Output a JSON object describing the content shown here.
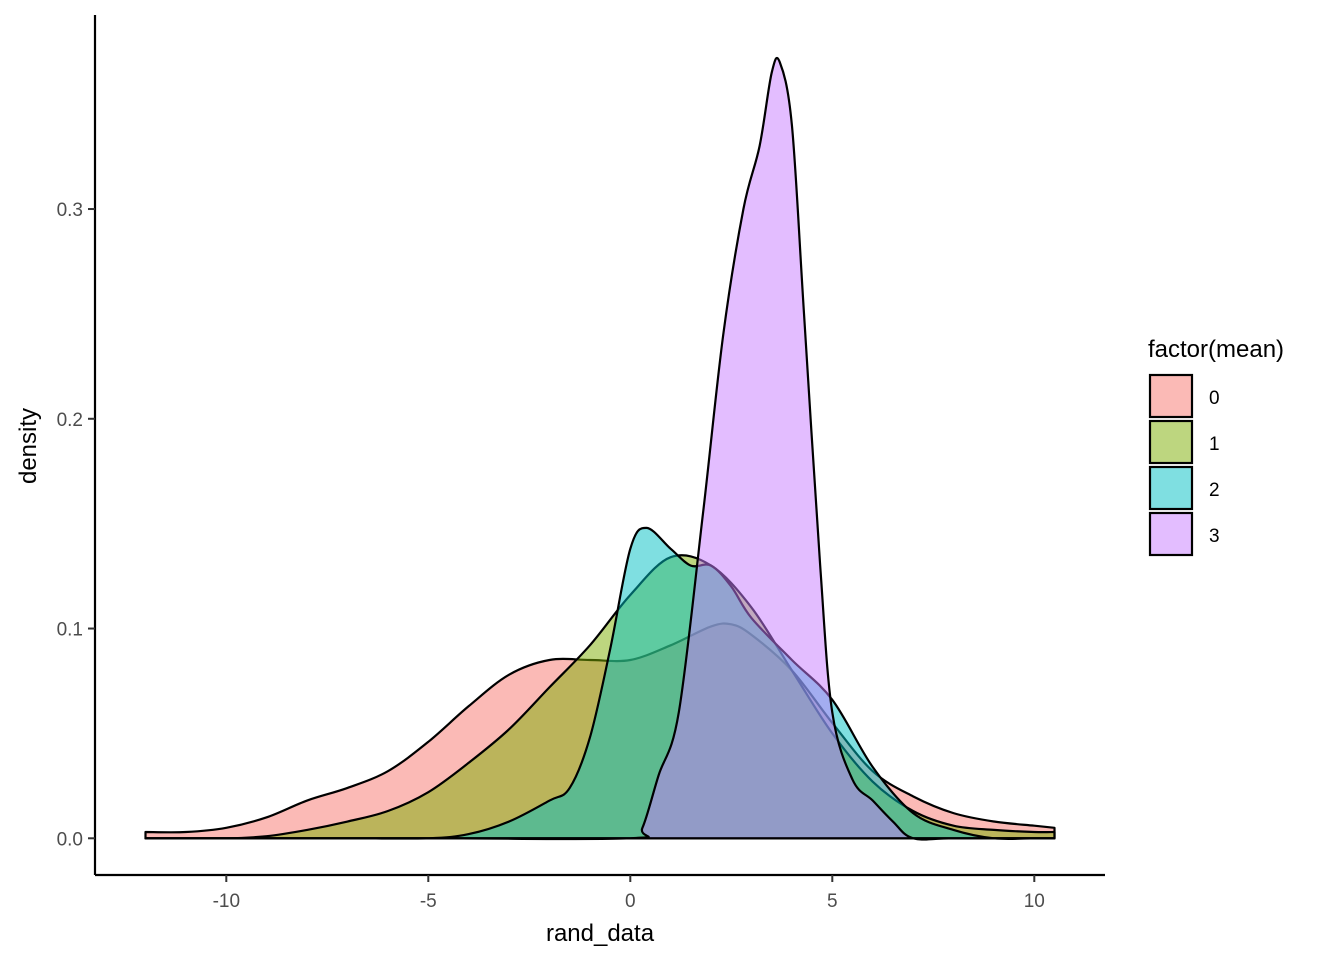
{
  "chart_data": {
    "type": "area",
    "title": "",
    "xlabel": "rand_data",
    "ylabel": "density",
    "xlim": [
      -13.25,
      11.75
    ],
    "ylim": [
      -0.0175,
      0.3925
    ],
    "x_ticks": [
      -10,
      -5,
      0,
      5,
      10
    ],
    "x_tick_labels": [
      "-10",
      "-5",
      "0",
      "5",
      "10"
    ],
    "y_ticks": [
      0.0,
      0.1,
      0.2,
      0.3
    ],
    "y_tick_labels": [
      "0.0",
      "0.1",
      "0.2",
      "0.3"
    ],
    "grid": false,
    "legend": {
      "title": "factor(mean)",
      "position": "right"
    },
    "series": [
      {
        "name": "0",
        "color": "#F8766D",
        "points": [
          [
            -12,
            0.003
          ],
          [
            -11,
            0.003
          ],
          [
            -10,
            0.005
          ],
          [
            -9,
            0.01
          ],
          [
            -8,
            0.018
          ],
          [
            -7,
            0.024
          ],
          [
            -6,
            0.032
          ],
          [
            -5,
            0.046
          ],
          [
            -4,
            0.063
          ],
          [
            -3,
            0.078
          ],
          [
            -2,
            0.085
          ],
          [
            -1,
            0.085
          ],
          [
            0,
            0.085
          ],
          [
            1,
            0.092
          ],
          [
            2,
            0.101
          ],
          [
            2.5,
            0.102
          ],
          [
            3,
            0.097
          ],
          [
            4,
            0.08
          ],
          [
            5,
            0.055
          ],
          [
            6,
            0.032
          ],
          [
            7,
            0.02
          ],
          [
            8,
            0.012
          ],
          [
            9,
            0.008
          ],
          [
            10,
            0.006
          ],
          [
            10.5,
            0.005
          ]
        ]
      },
      {
        "name": "1",
        "color": "#7CAE00",
        "points": [
          [
            -12,
            0.0
          ],
          [
            -10,
            0.0
          ],
          [
            -9,
            0.001
          ],
          [
            -8,
            0.004
          ],
          [
            -7,
            0.008
          ],
          [
            -6,
            0.013
          ],
          [
            -5,
            0.022
          ],
          [
            -4,
            0.036
          ],
          [
            -3,
            0.052
          ],
          [
            -2,
            0.072
          ],
          [
            -1,
            0.092
          ],
          [
            0,
            0.116
          ],
          [
            1,
            0.134
          ],
          [
            2,
            0.13
          ],
          [
            3,
            0.11
          ],
          [
            4,
            0.08
          ],
          [
            5,
            0.05
          ],
          [
            6,
            0.027
          ],
          [
            7,
            0.013
          ],
          [
            8,
            0.006
          ],
          [
            9,
            0.004
          ],
          [
            10,
            0.003
          ],
          [
            10.5,
            0.003
          ]
        ]
      },
      {
        "name": "2",
        "color": "#00BFC4",
        "points": [
          [
            -12,
            0.0
          ],
          [
            -9,
            0.0
          ],
          [
            -7,
            0.0
          ],
          [
            -5,
            0.0
          ],
          [
            -4,
            0.002
          ],
          [
            -3,
            0.008
          ],
          [
            -2,
            0.018
          ],
          [
            -1.5,
            0.024
          ],
          [
            -1,
            0.048
          ],
          [
            -0.5,
            0.09
          ],
          [
            0,
            0.138
          ],
          [
            0.4,
            0.148
          ],
          [
            1,
            0.138
          ],
          [
            1.5,
            0.13
          ],
          [
            2,
            0.13
          ],
          [
            2.5,
            0.12
          ],
          [
            3,
            0.105
          ],
          [
            4,
            0.085
          ],
          [
            5,
            0.066
          ],
          [
            6,
            0.034
          ],
          [
            7,
            0.012
          ],
          [
            8,
            0.004
          ],
          [
            9,
            0.0
          ],
          [
            10,
            0.0
          ],
          [
            10.5,
            0.0
          ]
        ]
      },
      {
        "name": "3",
        "color": "#C77CFF",
        "points": [
          [
            -12,
            0.0
          ],
          [
            -5,
            0.0
          ],
          [
            0,
            0.0
          ],
          [
            0.3,
            0.005
          ],
          [
            0.7,
            0.03
          ],
          [
            1.2,
            0.06
          ],
          [
            1.8,
            0.155
          ],
          [
            2.3,
            0.24
          ],
          [
            2.8,
            0.3
          ],
          [
            3.2,
            0.33
          ],
          [
            3.5,
            0.365
          ],
          [
            3.7,
            0.37
          ],
          [
            4,
            0.34
          ],
          [
            4.3,
            0.25
          ],
          [
            4.7,
            0.13
          ],
          [
            5,
            0.06
          ],
          [
            5.5,
            0.028
          ],
          [
            6,
            0.018
          ],
          [
            6.5,
            0.008
          ],
          [
            7,
            0.0
          ],
          [
            8,
            0.0
          ],
          [
            10.5,
            0.0
          ]
        ]
      }
    ]
  }
}
